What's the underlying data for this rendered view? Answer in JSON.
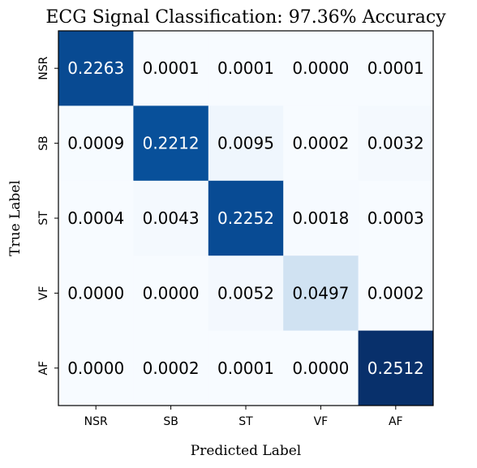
{
  "chart_data": {
    "type": "heatmap",
    "title": "ECG Signal Classification: 97.36% Accuracy",
    "xlabel": "Predicted Label",
    "ylabel": "True Label",
    "x_categories": [
      "NSR",
      "SB",
      "ST",
      "VF",
      "AF"
    ],
    "y_categories": [
      "NSR",
      "SB",
      "ST",
      "VF",
      "AF"
    ],
    "values": [
      [
        0.2263,
        0.0001,
        0.0001,
        0.0,
        0.0001
      ],
      [
        0.0009,
        0.2212,
        0.0095,
        0.0002,
        0.0032
      ],
      [
        0.0004,
        0.0043,
        0.2252,
        0.0018,
        0.0003
      ],
      [
        0.0,
        0.0,
        0.0052,
        0.0497,
        0.0002
      ],
      [
        0.0,
        0.0002,
        0.0001,
        0.0,
        0.2512
      ]
    ],
    "colormap": "Blues",
    "vmin": 0.0,
    "vmax": 0.2512,
    "grid": false
  }
}
